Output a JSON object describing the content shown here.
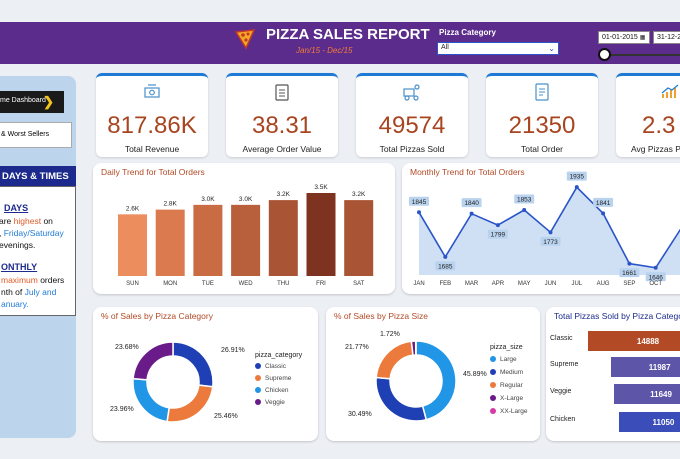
{
  "header": {
    "title": "PIZZA SALES REPORT",
    "subtitle": "Jan/15 - Dec/15",
    "category_label": "Pizza Category",
    "category_value": "All",
    "date_start": "01-01-2015",
    "date_end": "31-12-2"
  },
  "sidebar": {
    "dashboard_label": "me Dashboard",
    "best_worst_label": "& Worst Sellers",
    "days_times_title": "DAYS & TIMES",
    "days_heading": "DAYS",
    "days_line1_prefix": "are ",
    "days_line1_hl": "highest",
    "days_line1_suffix": " on",
    "days_line2_prefix": ", ",
    "days_line2_hl": "Friday/Saturday",
    "days_line3": "evenings.",
    "monthly_heading": "ONTHLY",
    "monthly_line1_hl": "maximum",
    "monthly_line1_suffix": " orders",
    "monthly_line2_prefix": "nth of ",
    "monthly_line2_hl": "July and",
    "monthly_line3": "anuary."
  },
  "kpis": [
    {
      "value": "817.86K",
      "label": "Total Revenue",
      "icon": "money-icon"
    },
    {
      "value": "38.31",
      "label": "Average Order Value",
      "icon": "clipboard-icon"
    },
    {
      "value": "49574",
      "label": "Total Pizzas Sold",
      "icon": "delivery-icon"
    },
    {
      "value": "21350",
      "label": "Total Order",
      "icon": "order-list-icon"
    },
    {
      "value": "2.3",
      "label": "Avg Pizzas Pe",
      "icon": "growth-chart-icon"
    }
  ],
  "colors": {
    "header": "#5b2c8c",
    "kpi_value": "#a8441f",
    "accent": "#1f7ad6"
  },
  "chart_data": [
    {
      "type": "bar",
      "title": "Daily Trend for Total Orders",
      "categories": [
        "SUN",
        "MON",
        "TUE",
        "WED",
        "THU",
        "FRI",
        "SAT"
      ],
      "values": [
        2.6,
        2.8,
        3.0,
        3.0,
        3.2,
        3.5,
        3.2
      ],
      "labels": [
        "2.6K",
        "2.8K",
        "3.0K",
        "3.0K",
        "3.2K",
        "3.5K",
        "3.2K"
      ],
      "colors": [
        "#ec8d5e",
        "#db7a4e",
        "#c96c44",
        "#b8603c",
        "#a95434",
        "#7e3220",
        "#a95434"
      ]
    },
    {
      "type": "area",
      "title": "Monthly Trend for Total Orders",
      "categories": [
        "JAN",
        "FEB",
        "MAR",
        "APR",
        "MAY",
        "JUN",
        "JUL",
        "AUG",
        "SEP",
        "OCT",
        "N"
      ],
      "values": [
        1845,
        1685,
        1840,
        1799,
        1853,
        1773,
        1935,
        1841,
        1661,
        1646,
        1792
      ],
      "labels": [
        "1845",
        "1685",
        "1840",
        "1799",
        "1853",
        "1773",
        "1935",
        "1841",
        "1661",
        "1646",
        ""
      ],
      "ylim": [
        1620,
        1950
      ]
    },
    {
      "type": "pie",
      "title": "% of Sales by Pizza Category",
      "legend_title": "pizza_category",
      "labels": [
        "Classic",
        "Supreme",
        "Chicken",
        "Veggie"
      ],
      "values": [
        26.91,
        25.46,
        23.96,
        23.68
      ],
      "pct_labels": [
        "26.91%",
        "25.46%",
        "23.96%",
        "23.68%"
      ],
      "colors": [
        "#1f3fb5",
        "#ec7a3c",
        "#2196e6",
        "#6a1b8a"
      ]
    },
    {
      "type": "pie",
      "title": "% of Sales by Pizza Size",
      "legend_title": "pizza_size",
      "labels": [
        "Large",
        "Medium",
        "Regular",
        "X-Large",
        "XX-Large"
      ],
      "values": [
        45.89,
        30.49,
        21.77,
        1.72,
        0.12
      ],
      "pct_labels": [
        "45.89%",
        "30.49%",
        "21.77%",
        "1.72%",
        ""
      ],
      "colors": [
        "#2196e6",
        "#1f3fb5",
        "#ec7a3c",
        "#6a1b8a",
        "#d63aa5"
      ]
    },
    {
      "type": "bar",
      "title": "Total Pizzas Sold by Pizza Catego",
      "categories": [
        "Classic",
        "Supreme",
        "Veggie",
        "Chicken"
      ],
      "values": [
        14888,
        11987,
        11649,
        11050
      ],
      "labels": [
        "14888",
        "11987",
        "11649",
        "11050"
      ],
      "colors": [
        "#b34a26",
        "#5c55a8",
        "#5c55a8",
        "#3a4db8"
      ]
    }
  ]
}
